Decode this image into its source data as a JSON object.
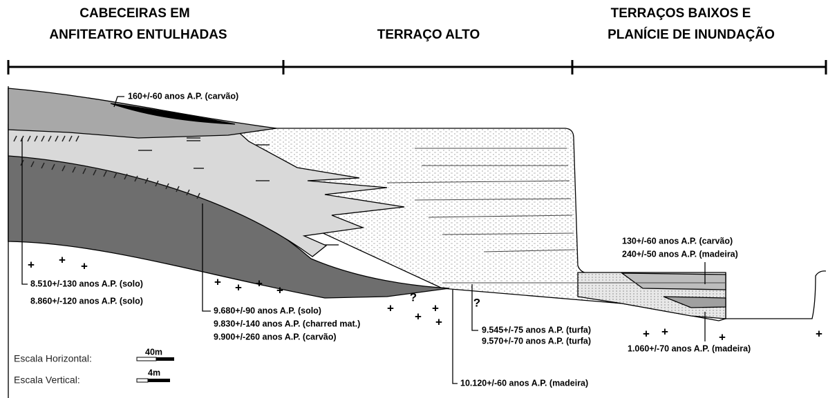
{
  "header": {
    "sections": [
      {
        "lines": [
          "CABECEIRAS EM",
          "ANFITEATRO ENTULHADAS"
        ]
      },
      {
        "lines": [
          "TERRAÇO ALTO"
        ]
      },
      {
        "lines": [
          "TERRAÇOS BAIXOS E",
          "PLANÍCIE DE INUNDAÇÃO"
        ]
      }
    ]
  },
  "dates": [
    "160+/-60 anos A.P. (carvão)",
    "8.510+/-130 anos A.P. (solo)",
    "8.860+/-120 anos A.P. (solo)",
    "9.680+/-90 anos A.P. (solo)",
    "9.830+/-140 anos A.P. (charred mat.)",
    "9.900+/-260 anos A.P. (carvão)",
    "10.120+/-60 anos A.P. (madeira)",
    "9.545+/-75 anos A.P. (turfa)",
    "9.570+/-70 anos A.P. (turfa)",
    "130+/-60 anos A.P. (carvão)",
    "240+/-50 anos A.P. (madeira)",
    "1.060+/-70 anos A.P. (madeira)"
  ],
  "question_marks": [
    "?",
    "?"
  ],
  "scale": {
    "horizontal": {
      "label": "Escala Horizontal:",
      "length": "40m"
    },
    "vertical": {
      "label": "Escala Vertical:",
      "length": "4m"
    }
  }
}
